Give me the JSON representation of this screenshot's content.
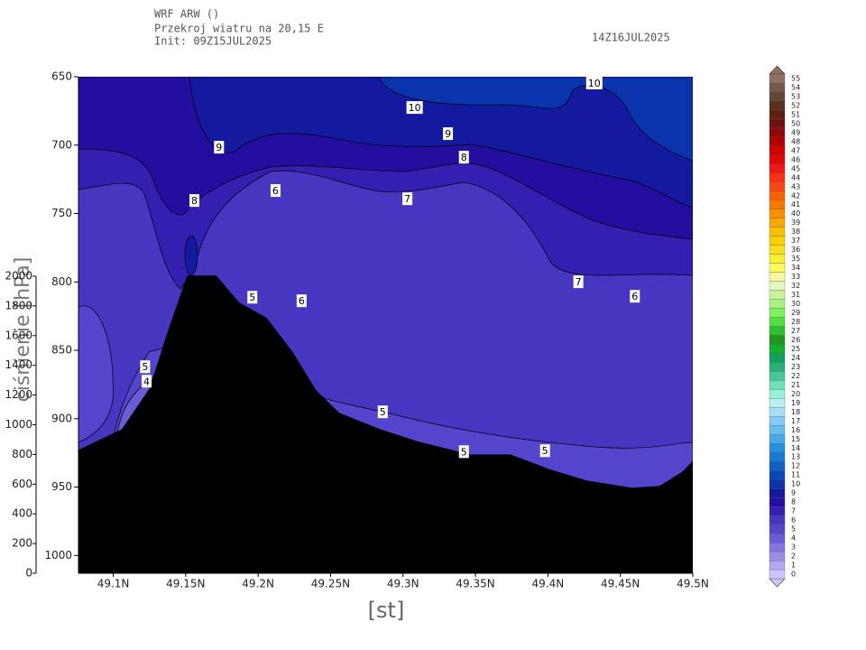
{
  "header": {
    "model": "WRF ARW ()",
    "subtitle": "Przekroj wiatru na 20,15 E",
    "init": "Init: 09Z15JUL2025",
    "valid": "14Z16JUL2025"
  },
  "chart_data": {
    "type": "contour",
    "xlabel": "[st]",
    "ylabel": "ciśnienie [hPa]",
    "xlim": [
      49.076,
      49.5
    ],
    "xticks": [
      {
        "value": 49.1,
        "label": "49.1N"
      },
      {
        "value": 49.15,
        "label": "49.15N"
      },
      {
        "value": 49.2,
        "label": "49.2N"
      },
      {
        "value": 49.25,
        "label": "49.25N"
      },
      {
        "value": 49.3,
        "label": "49.3N"
      },
      {
        "value": 49.35,
        "label": "49.35N"
      },
      {
        "value": 49.4,
        "label": "49.4N"
      },
      {
        "value": 49.45,
        "label": "49.45N"
      },
      {
        "value": 49.5,
        "label": "49.5N"
      }
    ],
    "ylim": [
      650,
      1013
    ],
    "yticks": [
      650,
      700,
      750,
      800,
      850,
      900,
      950,
      1000
    ],
    "y2lim": [
      0,
      2000
    ],
    "y2ticks": [
      0,
      200,
      400,
      600,
      800,
      1000,
      1200,
      1400,
      1600,
      1800,
      2000
    ],
    "levels": [
      0,
      1,
      2,
      3,
      4,
      5,
      6,
      7,
      8,
      9,
      10,
      11,
      12,
      13,
      14,
      15,
      16,
      17,
      18,
      19,
      20,
      21,
      22,
      23,
      24,
      25,
      26,
      27,
      28,
      29,
      30,
      31,
      32,
      33,
      34,
      35,
      36,
      37,
      38,
      39,
      40,
      41,
      42,
      43,
      44,
      45,
      46,
      47,
      48,
      49,
      50,
      51,
      52,
      53,
      54,
      55
    ],
    "colors": [
      "#ccc4ff",
      "#b4a8f4",
      "#9c8ce8",
      "#8474e0",
      "#6a5cd6",
      "#5446cc",
      "#4636c0",
      "#3420b0",
      "#240ea0",
      "#141a9e",
      "#0a34ac",
      "#0a48b8",
      "#1060c8",
      "#1878d4",
      "#2890e0",
      "#48a8e8",
      "#68bcf0",
      "#88ccf4",
      "#a8dcf8",
      "#b8f0f0",
      "#98f0d8",
      "#70e0b8",
      "#48c898",
      "#28b078",
      "#10a060",
      "#10b030",
      "#209820",
      "#30c030",
      "#50e040",
      "#80f060",
      "#a8f080",
      "#c8f4a0",
      "#e0f8c0",
      "#f8f8a0",
      "#f8f860",
      "#f8f030",
      "#f8e020",
      "#f8d000",
      "#f8c000",
      "#f8a800",
      "#f89000",
      "#f87800",
      "#f86000",
      "#f84818",
      "#f83018",
      "#f01818",
      "#e00808",
      "#d00000",
      "#b00000",
      "#900808",
      "#701010",
      "#602010",
      "#583020",
      "#604838",
      "#785848",
      "#907060"
    ],
    "terrain": {
      "lat": [
        49.076,
        49.106,
        49.125,
        49.137,
        49.151,
        49.171,
        49.187,
        49.206,
        49.224,
        49.24,
        49.256,
        49.284,
        49.309,
        49.346,
        49.374,
        49.402,
        49.427,
        49.458,
        49.477,
        49.493,
        49.5
      ],
      "pressure": [
        922.8,
        907.6,
        877.9,
        838.2,
        795.3,
        795.3,
        815.1,
        826.4,
        851.5,
        879.2,
        895.7,
        907.6,
        916.2,
        926.1,
        926.1,
        937.3,
        945.2,
        950.5,
        949.2,
        938.6,
        930.7
      ]
    },
    "contour_labels": [
      {
        "level": 10,
        "lat": 49.308,
        "pressure": 672.5
      },
      {
        "level": 10,
        "lat": 49.432,
        "pressure": 654.6
      },
      {
        "level": 9,
        "lat": 49.173,
        "pressure": 701.5
      },
      {
        "level": 9,
        "lat": 49.331,
        "pressure": 691.6
      },
      {
        "level": 8,
        "lat": 49.156,
        "pressure": 740.5
      },
      {
        "level": 8,
        "lat": 49.342,
        "pressure": 708.8
      },
      {
        "level": 7,
        "lat": 49.303,
        "pressure": 739.2
      },
      {
        "level": 7,
        "lat": 49.421,
        "pressure": 799.9
      },
      {
        "level": 6,
        "lat": 49.212,
        "pressure": 733.2
      },
      {
        "level": 6,
        "lat": 49.23,
        "pressure": 813.8
      },
      {
        "level": 6,
        "lat": 49.46,
        "pressure": 810.5
      },
      {
        "level": 5,
        "lat": 49.196,
        "pressure": 811.2
      },
      {
        "level": 5,
        "lat": 49.286,
        "pressure": 895.0
      },
      {
        "level": 5,
        "lat": 49.122,
        "pressure": 862.0
      },
      {
        "level": 5,
        "lat": 49.398,
        "pressure": 923.4
      },
      {
        "level": 5,
        "lat": 49.342,
        "pressure": 924.1
      },
      {
        "level": 4,
        "lat": 49.123,
        "pressure": 872.6
      }
    ]
  }
}
